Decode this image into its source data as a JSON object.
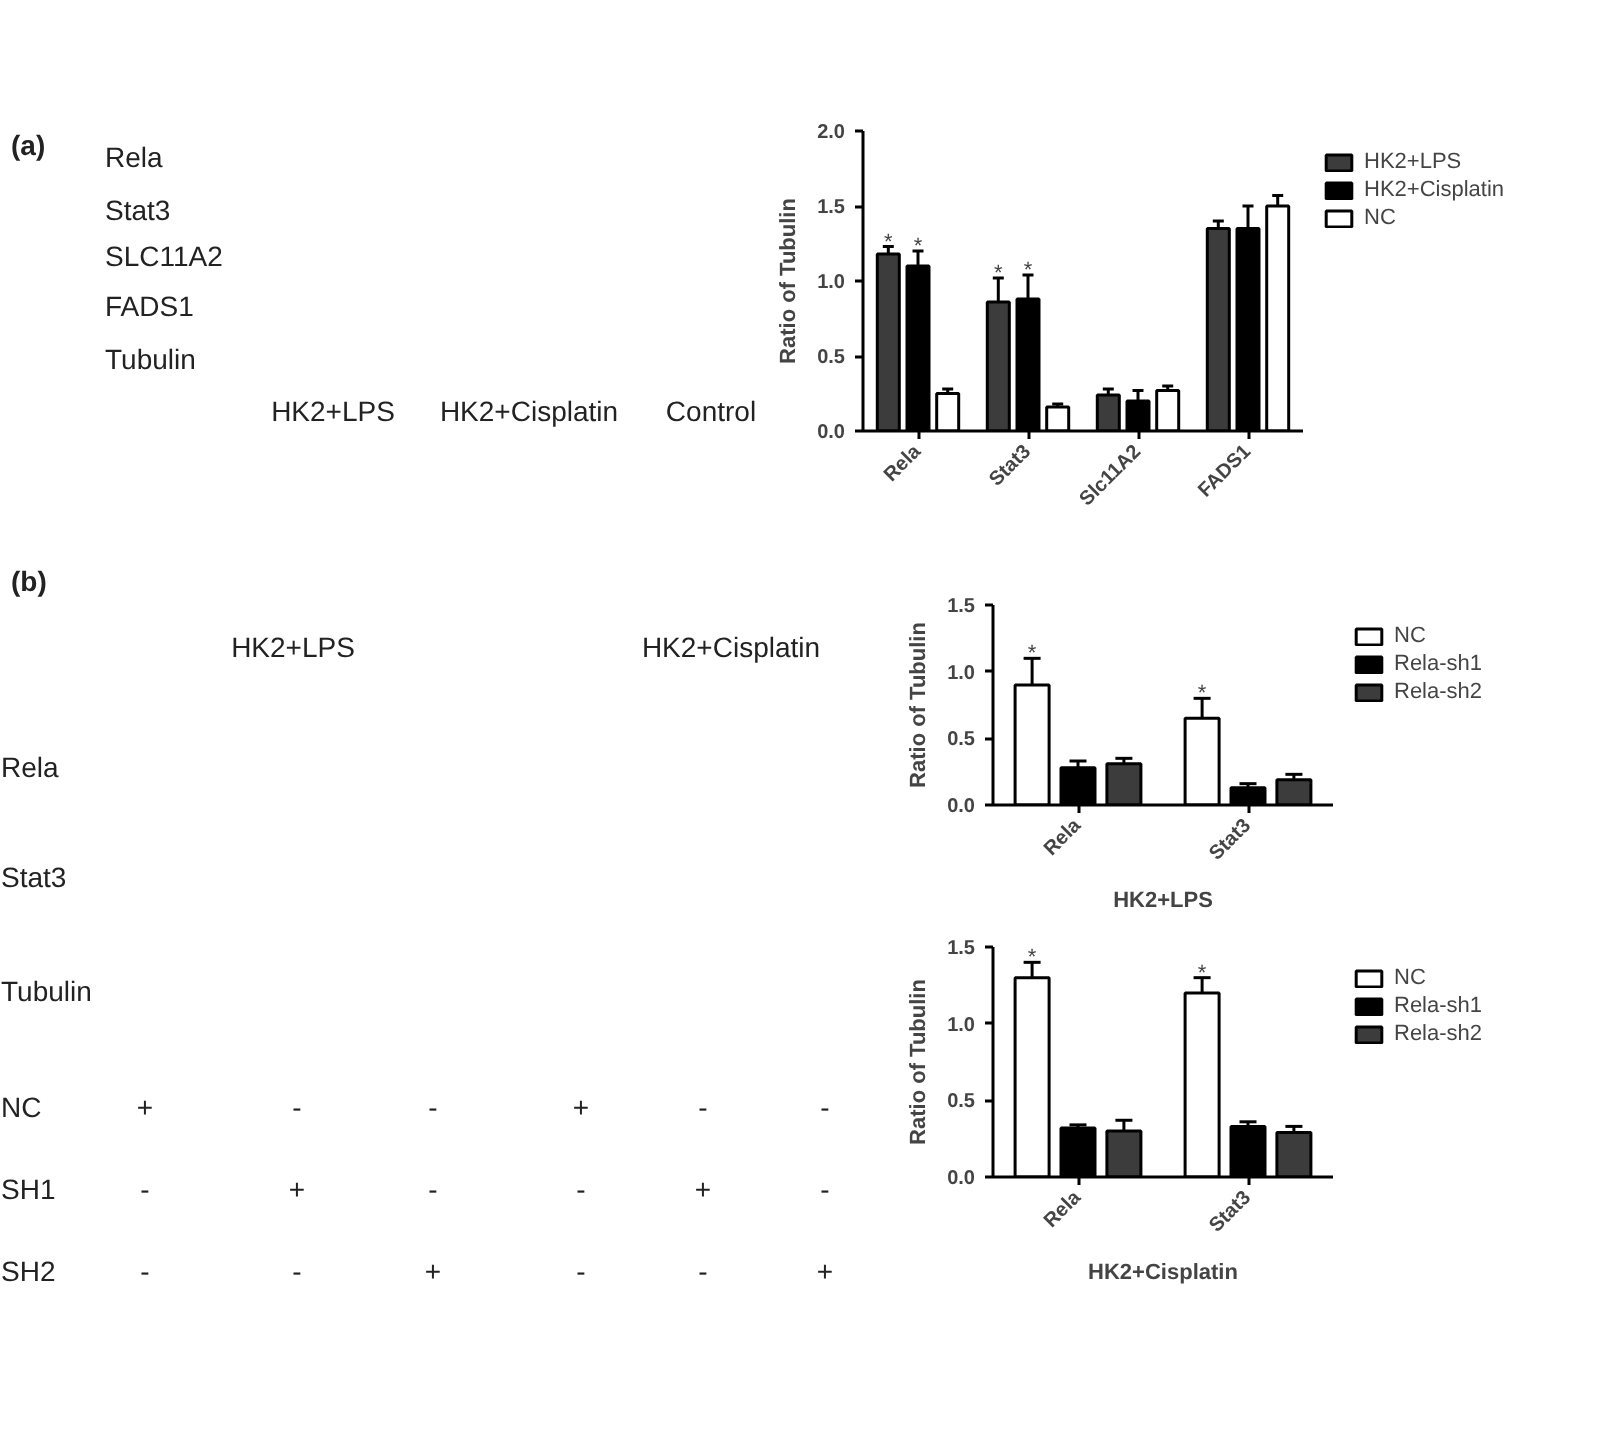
{
  "chart_data": [
    {
      "type": "other",
      "annotations": [
        "(a)",
        "Rela",
        "Stat3",
        "SLC11A2",
        "FADS1",
        "Tubulin",
        "HK2+LPS",
        "HK2+Cisplatin",
        "Control"
      ]
    },
    {
      "type": "bar",
      "ylabel": "Ratio of Tubulin",
      "categories": [
        "Rela",
        "Stat3",
        "Slc11A2",
        "FADS1"
      ],
      "ylim": [
        0,
        2.0
      ],
      "yticks": [
        {
          "value": 0,
          "label": "0.0"
        },
        {
          "value": 0.5,
          "label": "0.5"
        },
        {
          "value": 1.0,
          "label": "1.0"
        },
        {
          "value": 1.5,
          "label": "1.5"
        },
        {
          "value": 2.0,
          "label": "2.0"
        }
      ],
      "legend": "top right",
      "series": [
        {
          "name": "HK2+LPS",
          "color": "#3c3c3c",
          "values": [
            1.18,
            0.86,
            0.24,
            1.35
          ],
          "errors": [
            0.05,
            0.16,
            0.04,
            0.05
          ],
          "value_labels": [
            "*",
            "*",
            null,
            null
          ]
        },
        {
          "name": "HK2+Cisplatin",
          "color": "#000000",
          "values": [
            1.1,
            0.88,
            0.2,
            1.35
          ],
          "errors": [
            0.1,
            0.16,
            0.07,
            0.15
          ],
          "value_labels": [
            "*",
            "*",
            null,
            null
          ]
        },
        {
          "name": "NC",
          "color": "#ffffff",
          "values": [
            0.25,
            0.16,
            0.27,
            1.5
          ],
          "errors": [
            0.03,
            0.02,
            0.03,
            0.07
          ]
        }
      ]
    },
    {
      "type": "other",
      "annotations": [
        "(b)",
        "HK2+LPS",
        "HK2+Cisplatin",
        "Rela",
        "Stat3",
        "Tubulin",
        "NC",
        "SH1",
        "SH2",
        "+",
        "-",
        "-",
        "+",
        "-",
        "-",
        "-",
        "+",
        "-",
        "-",
        "+",
        "-",
        "-",
        "-",
        "+",
        "-",
        "-",
        "+"
      ]
    },
    {
      "type": "bar",
      "ylabel": "Ratio of Tubulin",
      "xlabel": "HK2+LPS",
      "categories": [
        "Rela",
        "Stat3"
      ],
      "ylim": [
        0,
        1.5
      ],
      "yticks": [
        {
          "value": 0,
          "label": "0.0"
        },
        {
          "value": 0.5,
          "label": "0.5"
        },
        {
          "value": 1.0,
          "label": "1.0"
        },
        {
          "value": 1.5,
          "label": "1.5"
        }
      ],
      "legend": "top right",
      "series": [
        {
          "name": "NC",
          "color": "#ffffff",
          "values": [
            0.9,
            0.65
          ],
          "errors": [
            0.2,
            0.15
          ],
          "value_labels": [
            "*",
            "*"
          ]
        },
        {
          "name": "Rela-sh1",
          "color": "#000000",
          "values": [
            0.28,
            0.13
          ],
          "errors": [
            0.05,
            0.03
          ]
        },
        {
          "name": "Rela-sh2",
          "color": "#3c3c3c",
          "values": [
            0.31,
            0.19
          ],
          "errors": [
            0.04,
            0.04
          ]
        }
      ]
    },
    {
      "type": "bar",
      "ylabel": "Ratio of Tubulin",
      "xlabel": "HK2+Cisplatin",
      "categories": [
        "Rela",
        "Stat3"
      ],
      "ylim": [
        0,
        1.5
      ],
      "yticks": [
        {
          "value": 0,
          "label": "0.0"
        },
        {
          "value": 0.5,
          "label": "0.5"
        },
        {
          "value": 1.0,
          "label": "1.0"
        },
        {
          "value": 1.5,
          "label": "1.5"
        }
      ],
      "legend": "top right",
      "series": [
        {
          "name": "NC",
          "color": "#ffffff",
          "values": [
            1.3,
            1.2
          ],
          "errors": [
            0.1,
            0.1
          ],
          "value_labels": [
            "*",
            "*"
          ]
        },
        {
          "name": "Rela-sh1",
          "color": "#000000",
          "values": [
            0.32,
            0.33
          ],
          "errors": [
            0.02,
            0.03
          ]
        },
        {
          "name": "Rela-sh2",
          "color": "#3c3c3c",
          "values": [
            0.3,
            0.29
          ],
          "errors": [
            0.07,
            0.04
          ]
        }
      ]
    }
  ]
}
